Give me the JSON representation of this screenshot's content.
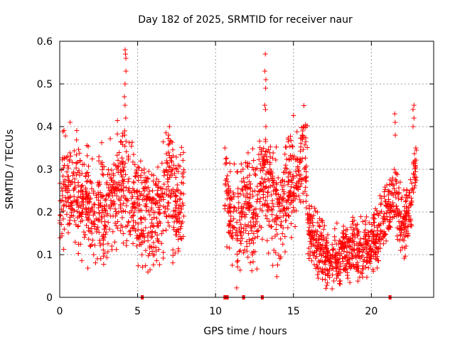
{
  "chart_data": {
    "type": "scatter",
    "title": "Day 182 of 2025, SRMTID for receiver naur",
    "xlabel": "GPS time / hours",
    "ylabel": "SRMTID / TECUs",
    "xlim": [
      0,
      24
    ],
    "ylim": [
      0,
      0.6
    ],
    "xticks": [
      0,
      5,
      10,
      15,
      20
    ],
    "yticks": [
      0,
      0.1,
      0.2,
      0.3,
      0.4,
      0.5,
      0.6
    ],
    "xtick_labels": [
      "0",
      "5",
      "10",
      "15",
      "20"
    ],
    "ytick_labels": [
      "0",
      "0.1",
      "0.2",
      "0.3",
      "0.4",
      "0.5",
      "0.6"
    ],
    "grid": true,
    "marker": "+",
    "color": "#ff0000",
    "series": [
      {
        "name": "SRMTID",
        "segments": [
          {
            "x_start": 0.0,
            "x_end": 8.0,
            "profile": [
              [
                0.0,
                0.22
              ],
              [
                0.5,
                0.27
              ],
              [
                1.0,
                0.26
              ],
              [
                1.5,
                0.22
              ],
              [
                2.0,
                0.21
              ],
              [
                2.5,
                0.2
              ],
              [
                3.0,
                0.22
              ],
              [
                3.5,
                0.25
              ],
              [
                4.0,
                0.26
              ],
              [
                4.5,
                0.24
              ],
              [
                5.0,
                0.22
              ],
              [
                5.5,
                0.2
              ],
              [
                6.0,
                0.18
              ],
              [
                6.5,
                0.22
              ],
              [
                7.0,
                0.28
              ],
              [
                7.5,
                0.2
              ],
              [
                8.0,
                0.22
              ]
            ],
            "spread": 0.06
          },
          {
            "x_start": 10.6,
            "x_end": 15.9,
            "profile": [
              [
                10.6,
                0.25
              ],
              [
                11.0,
                0.2
              ],
              [
                11.5,
                0.19
              ],
              [
                12.0,
                0.22
              ],
              [
                12.5,
                0.18
              ],
              [
                13.0,
                0.3
              ],
              [
                13.5,
                0.25
              ],
              [
                14.0,
                0.2
              ],
              [
                14.5,
                0.24
              ],
              [
                15.0,
                0.28
              ],
              [
                15.5,
                0.32
              ],
              [
                15.9,
                0.3
              ]
            ],
            "spread": 0.06
          },
          {
            "x_start": 15.9,
            "x_end": 22.9,
            "profile": [
              [
                15.9,
                0.17
              ],
              [
                16.5,
                0.12
              ],
              [
                17.0,
                0.1
              ],
              [
                17.5,
                0.09
              ],
              [
                18.0,
                0.09
              ],
              [
                18.5,
                0.11
              ],
              [
                19.0,
                0.12
              ],
              [
                19.5,
                0.11
              ],
              [
                20.0,
                0.12
              ],
              [
                20.5,
                0.16
              ],
              [
                21.0,
                0.22
              ],
              [
                21.5,
                0.25
              ],
              [
                22.0,
                0.15
              ],
              [
                22.5,
                0.22
              ],
              [
                22.9,
                0.32
              ]
            ],
            "spread": 0.035
          }
        ],
        "highlights": [
          {
            "x": 4.2,
            "values": [
              0.58,
              0.57,
              0.56,
              0.53,
              0.5,
              0.47,
              0.45,
              0.42,
              0.39,
              0.38
            ]
          },
          {
            "x": 13.2,
            "values": [
              0.57,
              0.53,
              0.51,
              0.49,
              0.45,
              0.44,
              0.4,
              0.37
            ]
          },
          {
            "x": 7.0,
            "values": [
              0.4,
              0.38,
              0.36,
              0.34
            ]
          },
          {
            "x": 15.6,
            "values": [
              0.4,
              0.39,
              0.38
            ]
          },
          {
            "x": 21.5,
            "values": [
              0.43,
              0.41,
              0.38
            ]
          },
          {
            "x": 22.7,
            "values": [
              0.45,
              0.44,
              0.42,
              0.4
            ]
          }
        ],
        "zero_markers": [
          5.3,
          10.6,
          10.75,
          11.8,
          13.0,
          21.2
        ]
      }
    ]
  }
}
